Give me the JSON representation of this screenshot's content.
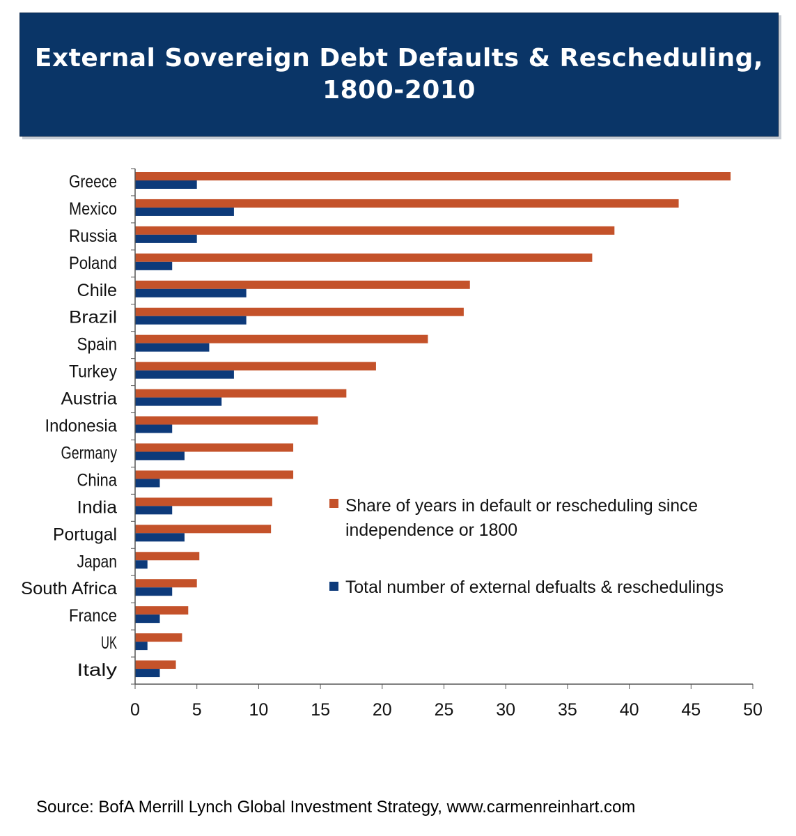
{
  "header": {
    "title_line1": "External Sovereign Debt Defaults & Rescheduling,",
    "title_line2": "1800-2010"
  },
  "colors": {
    "banner_bg": "#0a3567",
    "share_bar": "#c4522a",
    "count_bar": "#0d3a7a"
  },
  "chart_data": {
    "type": "bar",
    "orientation": "horizontal",
    "categories": [
      "Greece",
      "Mexico",
      "Russia",
      "Poland",
      "Chile",
      "Brazil",
      "Spain",
      "Turkey",
      "Austria",
      "Indonesia",
      "Germany",
      "China",
      "India",
      "Portugal",
      "Japan",
      "South Africa",
      "France",
      "UK",
      "Italy"
    ],
    "series": [
      {
        "name": "Share of years in default or rescheduling since independence or 1800",
        "legend_line1": "Share of years in default or rescheduling since",
        "legend_line2": "independence or 1800",
        "color": "#c4522a",
        "values": [
          48.2,
          44.0,
          38.8,
          37.0,
          27.1,
          26.6,
          23.7,
          19.5,
          17.1,
          14.8,
          12.8,
          12.8,
          11.1,
          11.0,
          5.2,
          5.0,
          4.3,
          3.8,
          3.3
        ]
      },
      {
        "name": "Total number of external defualts & reschedulings",
        "legend_line1": "Total number of external defualts & reschedulings",
        "color": "#0d3a7a",
        "values": [
          5,
          8,
          5,
          3,
          9,
          9,
          6,
          8,
          7,
          3,
          4,
          2,
          3,
          4,
          1,
          3,
          2,
          1,
          2
        ]
      }
    ],
    "xlim": [
      0,
      50
    ],
    "xticks": [
      "0",
      "5",
      "10",
      "15",
      "20",
      "25",
      "30",
      "35",
      "40",
      "45",
      "50"
    ],
    "xlabel": "",
    "ylabel": "",
    "legend_position": "center-right"
  },
  "footer": {
    "source": "Source: BofA Merrill Lynch Global Investment Strategy, www.carmenreinhart.com"
  }
}
